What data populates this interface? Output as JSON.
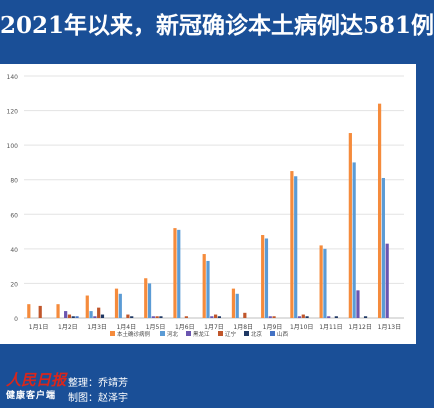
{
  "title": "2021年以来，新冠确诊本土病例达581例",
  "logo": {
    "line1": "人民日报",
    "line2": "健康客户端"
  },
  "credits": [
    "整理：乔靖芳",
    "制图：赵泽宇"
  ],
  "chart_data": {
    "type": "bar",
    "categories": [
      "1月1日",
      "1月2日",
      "1月3日",
      "1月4日",
      "1月5日",
      "1月6日",
      "1月7日",
      "1月8日",
      "1月9日",
      "1月10日",
      "1月11日",
      "1月12日",
      "1月13日"
    ],
    "ylim": [
      0,
      140
    ],
    "yticks": [
      0,
      20,
      40,
      60,
      80,
      100,
      120,
      140
    ],
    "grid": true,
    "legend_position": "bottom",
    "series": [
      {
        "name": "本土确诊病例",
        "color": "#f58b3c",
        "values": [
          8,
          8,
          13,
          17,
          23,
          52,
          37,
          17,
          48,
          85,
          42,
          107,
          124
        ]
      },
      {
        "name": "河北",
        "color": "#5b9bd5",
        "values": [
          0,
          0,
          4,
          14,
          20,
          51,
          33,
          14,
          46,
          82,
          40,
          90,
          81
        ]
      },
      {
        "name": "黑龙江",
        "color": "#6a55b0",
        "values": [
          0,
          4,
          1,
          0,
          1,
          0,
          1,
          0,
          1,
          1,
          1,
          16,
          43
        ]
      },
      {
        "name": "辽宁",
        "color": "#c0562b",
        "values": [
          7,
          2,
          6,
          2,
          1,
          1,
          2,
          3,
          1,
          2,
          0,
          0,
          0
        ]
      },
      {
        "name": "北京",
        "color": "#1f3864",
        "values": [
          0,
          1,
          2,
          1,
          1,
          0,
          1,
          0,
          0,
          1,
          1,
          1,
          0
        ]
      },
      {
        "name": "山西",
        "color": "#4472c4",
        "values": [
          0,
          1,
          0,
          0,
          0,
          0,
          0,
          0,
          0,
          0,
          0,
          0,
          0
        ]
      }
    ]
  }
}
